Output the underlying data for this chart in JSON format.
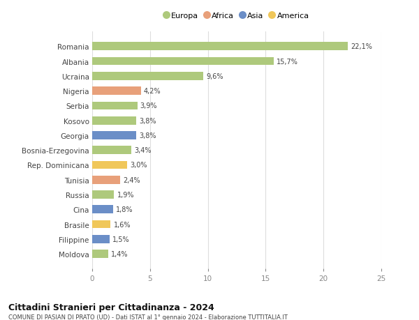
{
  "countries": [
    "Moldova",
    "Filippine",
    "Brasile",
    "Cina",
    "Russia",
    "Tunisia",
    "Rep. Dominicana",
    "Bosnia-Erzegovina",
    "Georgia",
    "Kosovo",
    "Serbia",
    "Nigeria",
    "Ucraina",
    "Albania",
    "Romania"
  ],
  "values": [
    1.4,
    1.5,
    1.6,
    1.8,
    1.9,
    2.4,
    3.0,
    3.4,
    3.8,
    3.8,
    3.9,
    4.2,
    9.6,
    15.7,
    22.1
  ],
  "labels": [
    "1,4%",
    "1,5%",
    "1,6%",
    "1,8%",
    "1,9%",
    "2,4%",
    "3,0%",
    "3,4%",
    "3,8%",
    "3,8%",
    "3,9%",
    "4,2%",
    "9,6%",
    "15,7%",
    "22,1%"
  ],
  "colors": [
    "#aec97c",
    "#6b8ec7",
    "#f0c75a",
    "#6b8ec7",
    "#aec97c",
    "#e8a07a",
    "#f0c75a",
    "#aec97c",
    "#6b8ec7",
    "#aec97c",
    "#aec97c",
    "#e8a07a",
    "#aec97c",
    "#aec97c",
    "#aec97c"
  ],
  "legend_labels": [
    "Europa",
    "Africa",
    "Asia",
    "America"
  ],
  "legend_colors": [
    "#aec97c",
    "#e8a07a",
    "#6b8ec7",
    "#f0c75a"
  ],
  "title": "Cittadini Stranieri per Cittadinanza - 2024",
  "subtitle": "COMUNE DI PASIAN DI PRATO (UD) - Dati ISTAT al 1° gennaio 2024 - Elaborazione TUTTITALIA.IT",
  "xlim": [
    0,
    25
  ],
  "xticks": [
    0,
    5,
    10,
    15,
    20,
    25
  ],
  "background_color": "#ffffff",
  "bar_height": 0.55,
  "grid_color": "#dddddd"
}
